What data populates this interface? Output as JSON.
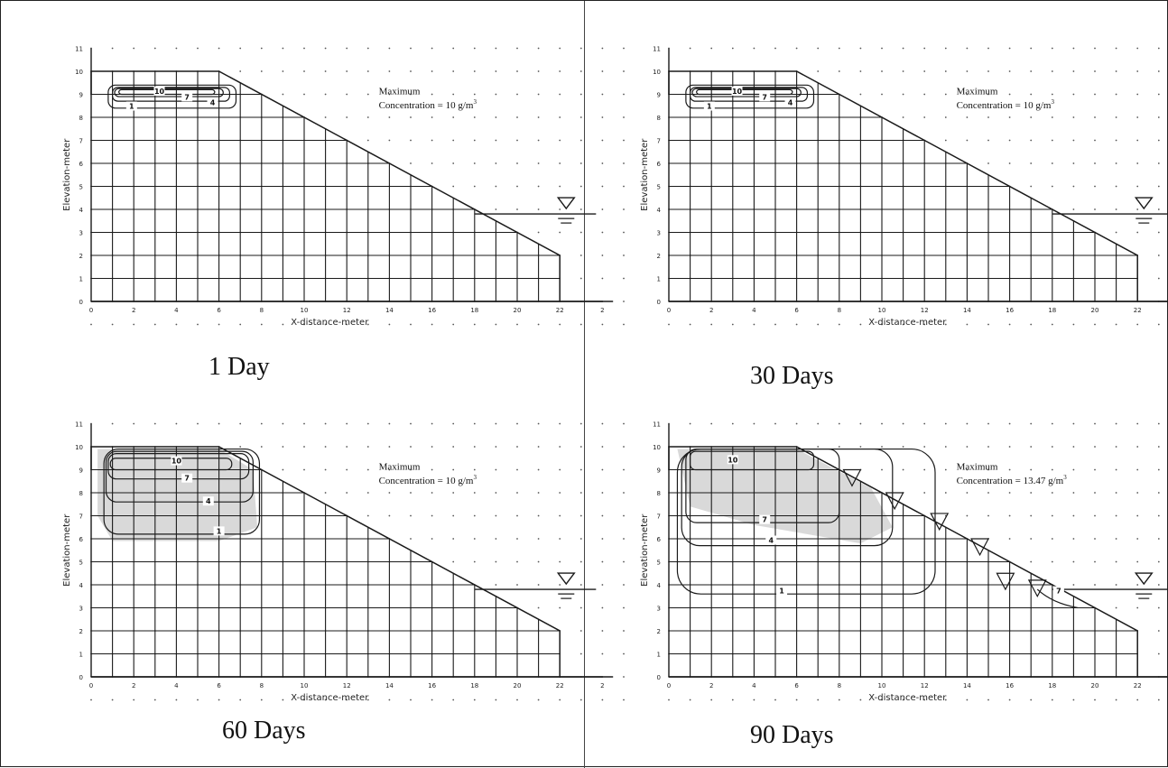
{
  "figure": {
    "panels": [
      {
        "caption": "1 Day",
        "annotation_line1": "Maximum",
        "annotation_line2": "Concentration = 10  g/m",
        "annotation_sup": "3",
        "plume_labels": [
          "10",
          "7",
          "4",
          "1"
        ]
      },
      {
        "caption": "30 Days",
        "annotation_line1": "Maximum",
        "annotation_line2": "Concentration = 10  g/m",
        "annotation_sup": "3",
        "plume_labels": [
          "10",
          "7",
          "4",
          "1"
        ]
      },
      {
        "caption": "60 Days",
        "annotation_line1": "Maximum",
        "annotation_line2": "Concentration = 10  g/m",
        "annotation_sup": "3",
        "plume_labels": [
          "10",
          "7",
          "4",
          "1"
        ]
      },
      {
        "caption": "90 Days",
        "annotation_line1": "Maximum",
        "annotation_line2": "Concentration = 13.47  g/m",
        "annotation_sup": "3",
        "plume_labels": [
          "10",
          "7",
          "4",
          "1",
          "7"
        ]
      }
    ],
    "axes": {
      "xlabel": "X-distance-meter",
      "ylabel": "Elevation-meter",
      "x_ticks": [
        "0",
        "2",
        "4",
        "6",
        "8",
        "10",
        "12",
        "14",
        "16",
        "18",
        "20",
        "22",
        "2"
      ],
      "y_ticks": [
        "0",
        "1",
        "2",
        "3",
        "4",
        "5",
        "6",
        "7",
        "8",
        "9",
        "10",
        "11"
      ]
    },
    "colors": {
      "line": "#1a1a1a",
      "plume_shade": "#d9d9d9",
      "background": "#ffffff"
    }
  }
}
